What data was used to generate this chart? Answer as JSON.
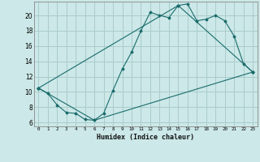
{
  "title": "",
  "xlabel": "Humidex (Indice chaleur)",
  "background_color": "#cce8e8",
  "grid_color": "#aacccc",
  "line_color": "#1a6b6b",
  "xlim": [
    -0.5,
    23.5
  ],
  "ylim": [
    5.5,
    21.8
  ],
  "xticks": [
    0,
    1,
    2,
    3,
    4,
    5,
    6,
    7,
    8,
    9,
    10,
    11,
    12,
    13,
    14,
    15,
    16,
    17,
    18,
    19,
    20,
    21,
    22,
    23
  ],
  "yticks": [
    6,
    8,
    10,
    12,
    14,
    16,
    18,
    20
  ],
  "line1_x": [
    0,
    1,
    2,
    3,
    4,
    5,
    6,
    7,
    8,
    9,
    10,
    11,
    12,
    13,
    14,
    15,
    16,
    17,
    18,
    19,
    20,
    21,
    22,
    23
  ],
  "line1_y": [
    10.5,
    9.8,
    8.3,
    7.3,
    7.2,
    6.4,
    6.3,
    7.2,
    10.2,
    13.0,
    15.2,
    18.0,
    20.4,
    20.0,
    19.7,
    21.3,
    21.5,
    19.3,
    19.5,
    20.0,
    19.3,
    17.3,
    13.7,
    12.6
  ],
  "line2_x": [
    0,
    6,
    23
  ],
  "line2_y": [
    10.5,
    6.3,
    12.6
  ],
  "line3_x": [
    0,
    15,
    23
  ],
  "line3_y": [
    10.5,
    21.3,
    12.6
  ]
}
